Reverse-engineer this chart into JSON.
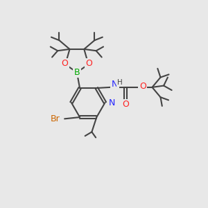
{
  "bg_color": "#e8e8e8",
  "bond_color": "#444444",
  "colors": {
    "B": "#00aa00",
    "O": "#ff2222",
    "N": "#2222ff",
    "Br": "#cc6600",
    "C": "#444444",
    "H": "#444444"
  }
}
